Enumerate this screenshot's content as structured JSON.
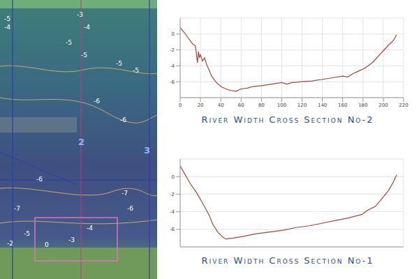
{
  "map": {
    "contour_labels": [
      "-5",
      "-4",
      "-3",
      "-4",
      "-5",
      "-5",
      "-5",
      "-5",
      "-6",
      "-6",
      "-6",
      "-7",
      "-7",
      "-6",
      "-5",
      "-4",
      "-3",
      "-2",
      "0"
    ],
    "section_labels": [
      "2",
      "3"
    ]
  },
  "chart_data": [
    {
      "type": "line",
      "title": "River Width Cross Section No-2",
      "x": [
        0,
        4,
        8,
        12,
        15,
        17,
        18,
        19,
        20,
        22,
        24,
        26,
        28,
        31,
        35,
        40,
        45,
        50,
        55,
        60,
        66,
        72,
        80,
        90,
        100,
        105,
        110,
        120,
        130,
        140,
        150,
        160,
        165,
        170,
        175,
        180,
        185,
        190,
        195,
        200,
        205,
        210,
        213
      ],
      "values": [
        0.8,
        0.2,
        -0.5,
        -1.2,
        -1.5,
        -3.6,
        -2.2,
        -3.0,
        -2.6,
        -3.4,
        -3.0,
        -3.8,
        -4.4,
        -5.3,
        -6.0,
        -6.6,
        -6.9,
        -7.1,
        -7.2,
        -6.9,
        -6.8,
        -6.6,
        -6.5,
        -6.3,
        -6.1,
        -6.3,
        -6.1,
        -6.0,
        -5.9,
        -5.7,
        -5.5,
        -5.3,
        -5.4,
        -5.0,
        -4.7,
        -4.4,
        -4.0,
        -3.5,
        -2.8,
        -2.1,
        -1.4,
        -0.8,
        -0.1
      ],
      "color": "#a3473c",
      "xlim": [
        0,
        220
      ],
      "xticks": [
        0,
        20,
        40,
        60,
        80,
        100,
        120,
        140,
        160,
        180,
        200,
        220
      ],
      "ylim": [
        -8,
        2
      ],
      "yticks": [
        -6,
        -4,
        -2,
        0
      ],
      "grid": true
    },
    {
      "type": "line",
      "title": "River Width Cross Section No-1",
      "x": [
        0,
        4.5,
        10,
        16,
        23,
        29,
        32,
        37,
        42,
        45,
        52,
        62,
        75,
        88,
        101,
        114,
        127,
        140,
        153,
        166,
        179,
        185,
        192,
        198,
        205,
        210,
        213
      ],
      "values": [
        1.2,
        0.3,
        -0.8,
        -1.8,
        -3.2,
        -4.5,
        -5.4,
        -6.3,
        -6.9,
        -7.1,
        -7.0,
        -6.8,
        -6.5,
        -6.3,
        -6.1,
        -5.8,
        -5.6,
        -5.3,
        -5.0,
        -4.7,
        -4.3,
        -3.8,
        -3.4,
        -2.6,
        -1.6,
        -0.6,
        0.2
      ],
      "color": "#a3473c",
      "xlim": [
        0,
        220
      ],
      "ylim": [
        -8,
        2
      ],
      "yticks": [
        -6,
        -4,
        -2,
        0
      ],
      "grid": true,
      "tick_labels": "y"
    }
  ]
}
